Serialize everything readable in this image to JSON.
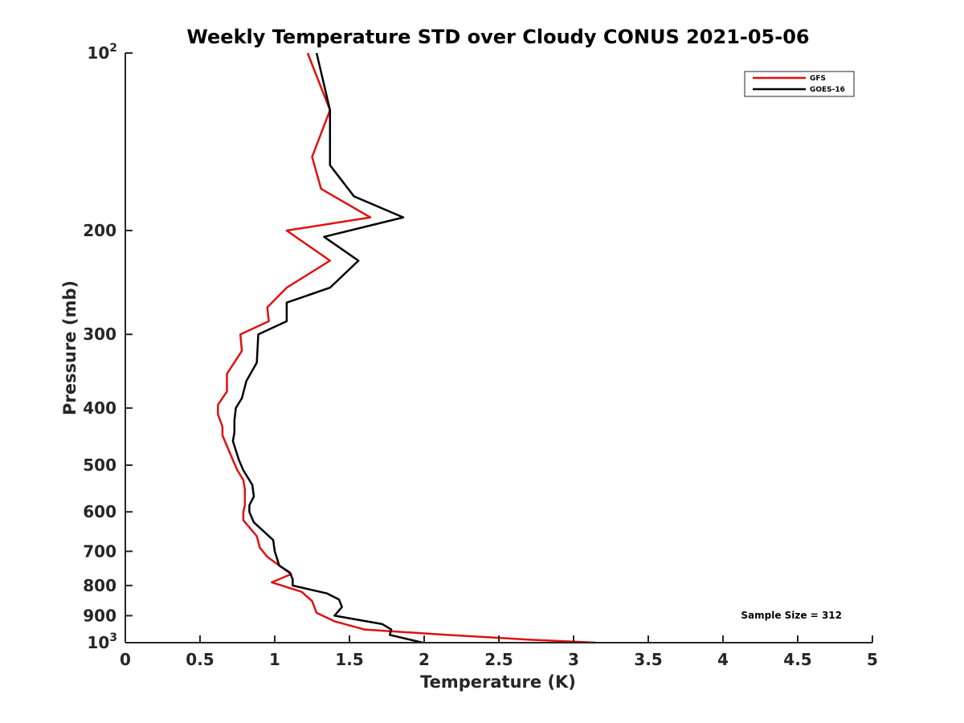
{
  "chart_data": {
    "type": "line",
    "title": "Weekly Temperature STD over Cloudy CONUS 2021-05-06",
    "xlabel": "Temperature (K)",
    "ylabel": "Pressure (mb)",
    "xlim": [
      0,
      5
    ],
    "ylim": [
      100,
      1000
    ],
    "y_scale": "log",
    "y_reversed": true,
    "grid": false,
    "legend_position": "top-right",
    "x_ticks": [
      "0",
      "0.5",
      "1",
      "1.5",
      "2",
      "2.5",
      "3",
      "3.5",
      "4",
      "4.5",
      "5"
    ],
    "y_ticks": [
      {
        "value": 100,
        "base": "10",
        "exp": "2"
      },
      {
        "value": 200,
        "label": "200"
      },
      {
        "value": 300,
        "label": "300"
      },
      {
        "value": 400,
        "label": "400"
      },
      {
        "value": 500,
        "label": "500"
      },
      {
        "value": 600,
        "label": "600"
      },
      {
        "value": 700,
        "label": "700"
      },
      {
        "value": 800,
        "label": "800"
      },
      {
        "value": 900,
        "label": "900"
      },
      {
        "value": 1000,
        "base": "10",
        "exp": "3"
      }
    ],
    "annotation": "Sample Size = 312",
    "series": [
      {
        "name": "GFS",
        "color": "#e01010",
        "points": [
          [
            1.22,
            100
          ],
          [
            1.37,
            125
          ],
          [
            1.25,
            150
          ],
          [
            1.31,
            170
          ],
          [
            1.64,
            190
          ],
          [
            1.08,
            200
          ],
          [
            1.37,
            225
          ],
          [
            1.08,
            250
          ],
          [
            0.95,
            270
          ],
          [
            0.96,
            285
          ],
          [
            0.77,
            300
          ],
          [
            0.78,
            320
          ],
          [
            0.68,
            350
          ],
          [
            0.68,
            375
          ],
          [
            0.62,
            395
          ],
          [
            0.62,
            410
          ],
          [
            0.65,
            430
          ],
          [
            0.65,
            445
          ],
          [
            0.72,
            490
          ],
          [
            0.75,
            510
          ],
          [
            0.79,
            530
          ],
          [
            0.8,
            550
          ],
          [
            0.8,
            585
          ],
          [
            0.79,
            600
          ],
          [
            0.79,
            620
          ],
          [
            0.88,
            660
          ],
          [
            0.9,
            690
          ],
          [
            0.95,
            715
          ],
          [
            1.03,
            740
          ],
          [
            1.11,
            765
          ],
          [
            0.98,
            790
          ],
          [
            1.18,
            820
          ],
          [
            1.25,
            850
          ],
          [
            1.28,
            890
          ],
          [
            1.4,
            920
          ],
          [
            1.6,
            950
          ],
          [
            2.15,
            970
          ],
          [
            2.7,
            988
          ],
          [
            3.15,
            1000
          ]
        ]
      },
      {
        "name": "GOES-16",
        "color": "#000000",
        "points": [
          [
            1.28,
            100
          ],
          [
            1.37,
            125
          ],
          [
            1.37,
            155
          ],
          [
            1.53,
            175
          ],
          [
            1.86,
            190
          ],
          [
            1.33,
            205
          ],
          [
            1.56,
            225
          ],
          [
            1.37,
            250
          ],
          [
            1.08,
            265
          ],
          [
            1.08,
            285
          ],
          [
            0.89,
            300
          ],
          [
            0.88,
            335
          ],
          [
            0.81,
            360
          ],
          [
            0.78,
            385
          ],
          [
            0.74,
            400
          ],
          [
            0.73,
            420
          ],
          [
            0.73,
            440
          ],
          [
            0.72,
            455
          ],
          [
            0.76,
            490
          ],
          [
            0.79,
            510
          ],
          [
            0.85,
            540
          ],
          [
            0.86,
            565
          ],
          [
            0.83,
            585
          ],
          [
            0.83,
            600
          ],
          [
            0.86,
            625
          ],
          [
            0.99,
            670
          ],
          [
            1.0,
            700
          ],
          [
            1.03,
            740
          ],
          [
            1.1,
            760
          ],
          [
            1.12,
            780
          ],
          [
            1.12,
            800
          ],
          [
            1.35,
            825
          ],
          [
            1.43,
            845
          ],
          [
            1.45,
            870
          ],
          [
            1.4,
            900
          ],
          [
            1.72,
            930
          ],
          [
            1.78,
            950
          ],
          [
            1.77,
            970
          ],
          [
            1.99,
            1000
          ]
        ]
      }
    ]
  }
}
